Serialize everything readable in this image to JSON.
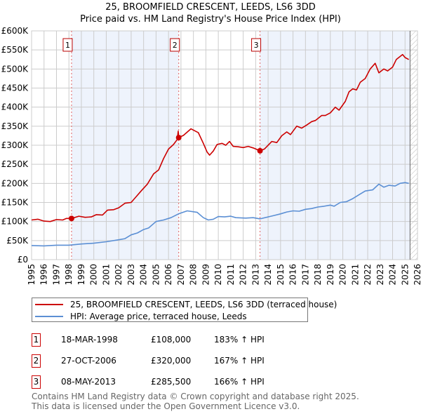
{
  "title": "25, BROOMFIELD CRESCENT, LEEDS, LS6 3DD",
  "subtitle": "Price paid vs. HM Land Registry's House Price Index (HPI)",
  "colors": {
    "price": "#cc0000",
    "hpi": "#5b8fd4",
    "shade": "#eef3fc",
    "grid": "#cccccc"
  },
  "chart_data": {
    "type": "line",
    "title": "25, BROOMFIELD CRESCENT, LEEDS, LS6 3DD",
    "xlim": [
      1995,
      2026
    ],
    "ylim": [
      0,
      600000
    ],
    "grid": true,
    "x_ticks": [
      "1995",
      "1996",
      "1997",
      "1998",
      "1999",
      "2000",
      "2001",
      "2002",
      "2003",
      "2004",
      "2005",
      "2006",
      "2007",
      "2008",
      "2009",
      "2010",
      "2011",
      "2012",
      "2013",
      "2014",
      "2015",
      "2016",
      "2017",
      "2018",
      "2019",
      "2020",
      "2021",
      "2022",
      "2023",
      "2024",
      "2025",
      "2026"
    ],
    "y_ticks": [
      {
        "v": 0,
        "label": "£0"
      },
      {
        "v": 50000,
        "label": "£50K"
      },
      {
        "v": 100000,
        "label": "£100K"
      },
      {
        "v": 150000,
        "label": "£150K"
      },
      {
        "v": 200000,
        "label": "£200K"
      },
      {
        "v": 250000,
        "label": "£250K"
      },
      {
        "v": 300000,
        "label": "£300K"
      },
      {
        "v": 350000,
        "label": "£350K"
      },
      {
        "v": 400000,
        "label": "£400K"
      },
      {
        "v": 450000,
        "label": "£450K"
      },
      {
        "v": 500000,
        "label": "£500K"
      },
      {
        "v": 550000,
        "label": "£550K"
      },
      {
        "v": 600000,
        "label": "£600K"
      }
    ],
    "data_end": 2025.4,
    "series": [
      {
        "name": "25, BROOMFIELD CRESCENT, LEEDS, LS6 3DD (terraced house)",
        "color": "#cc0000",
        "points": [
          [
            1995,
            104000
          ],
          [
            1995.5,
            106000
          ],
          [
            1996,
            101000
          ],
          [
            1996.5,
            100000
          ],
          [
            1997,
            105000
          ],
          [
            1997.5,
            104000
          ],
          [
            1997.8,
            108000
          ],
          [
            1998.21,
            108000
          ],
          [
            1998.8,
            114000
          ],
          [
            1999.3,
            111000
          ],
          [
            1999.8,
            112000
          ],
          [
            2000.2,
            118000
          ],
          [
            2000.7,
            117000
          ],
          [
            2001.1,
            130000
          ],
          [
            2001.6,
            131000
          ],
          [
            2002,
            136000
          ],
          [
            2002.5,
            148000
          ],
          [
            2003,
            150000
          ],
          [
            2003.4,
            165000
          ],
          [
            2003.8,
            180000
          ],
          [
            2004.3,
            198000
          ],
          [
            2004.8,
            225000
          ],
          [
            2005.2,
            235000
          ],
          [
            2005.6,
            265000
          ],
          [
            2006,
            290000
          ],
          [
            2006.4,
            302000
          ],
          [
            2006.7,
            315000
          ],
          [
            2006.78,
            337000
          ],
          [
            2006.82,
            320000
          ],
          [
            2007.2,
            326000
          ],
          [
            2007.8,
            343000
          ],
          [
            2008.4,
            333000
          ],
          [
            2008.8,
            305000
          ],
          [
            2009.1,
            282000
          ],
          [
            2009.3,
            274000
          ],
          [
            2009.6,
            285000
          ],
          [
            2009.9,
            302000
          ],
          [
            2010.3,
            305000
          ],
          [
            2010.6,
            300000
          ],
          [
            2010.9,
            310000
          ],
          [
            2011.2,
            297000
          ],
          [
            2011.6,
            296000
          ],
          [
            2012,
            294000
          ],
          [
            2012.4,
            297000
          ],
          [
            2012.8,
            293000
          ],
          [
            2013.35,
            285500
          ],
          [
            2013.7,
            290000
          ],
          [
            2014.3,
            310000
          ],
          [
            2014.7,
            307000
          ],
          [
            2015.1,
            325000
          ],
          [
            2015.5,
            335000
          ],
          [
            2015.8,
            328000
          ],
          [
            2016.3,
            350000
          ],
          [
            2016.7,
            345000
          ],
          [
            2017.1,
            353000
          ],
          [
            2017.5,
            362000
          ],
          [
            2017.8,
            365000
          ],
          [
            2018.3,
            378000
          ],
          [
            2018.6,
            378000
          ],
          [
            2019,
            385000
          ],
          [
            2019.4,
            400000
          ],
          [
            2019.7,
            392000
          ],
          [
            2020.2,
            415000
          ],
          [
            2020.5,
            440000
          ],
          [
            2020.8,
            448000
          ],
          [
            2021.1,
            445000
          ],
          [
            2021.4,
            465000
          ],
          [
            2021.8,
            475000
          ],
          [
            2022.2,
            500000
          ],
          [
            2022.6,
            515000
          ],
          [
            2022.9,
            490000
          ],
          [
            2023.3,
            500000
          ],
          [
            2023.6,
            495000
          ],
          [
            2024,
            505000
          ],
          [
            2024.3,
            525000
          ],
          [
            2024.8,
            538000
          ],
          [
            2025,
            530000
          ],
          [
            2025.3,
            525000
          ]
        ]
      },
      {
        "name": "HPI: Average price, terraced house, Leeds",
        "color": "#5b8fd4",
        "points": [
          [
            1995,
            37000
          ],
          [
            1996,
            36000
          ],
          [
            1997,
            38000
          ],
          [
            1998,
            38000
          ],
          [
            1999,
            41000
          ],
          [
            2000,
            43000
          ],
          [
            2001,
            47000
          ],
          [
            2002,
            52000
          ],
          [
            2002.5,
            55000
          ],
          [
            2003,
            65000
          ],
          [
            2003.5,
            70000
          ],
          [
            2004,
            79000
          ],
          [
            2004.4,
            83000
          ],
          [
            2005,
            100000
          ],
          [
            2005.6,
            104000
          ],
          [
            2006.2,
            110000
          ],
          [
            2006.8,
            120000
          ],
          [
            2007.5,
            128000
          ],
          [
            2008.3,
            124000
          ],
          [
            2008.8,
            110000
          ],
          [
            2009.2,
            104000
          ],
          [
            2009.6,
            106000
          ],
          [
            2010,
            113000
          ],
          [
            2010.5,
            112000
          ],
          [
            2011,
            114000
          ],
          [
            2011.4,
            110000
          ],
          [
            2012.2,
            109000
          ],
          [
            2012.8,
            110000
          ],
          [
            2013.35,
            107000
          ],
          [
            2014,
            112000
          ],
          [
            2014.5,
            116000
          ],
          [
            2015,
            120000
          ],
          [
            2015.5,
            125000
          ],
          [
            2016,
            128000
          ],
          [
            2016.5,
            127000
          ],
          [
            2017,
            132000
          ],
          [
            2017.5,
            134000
          ],
          [
            2018,
            138000
          ],
          [
            2018.5,
            140000
          ],
          [
            2019,
            143000
          ],
          [
            2019.3,
            140000
          ],
          [
            2019.8,
            150000
          ],
          [
            2020.3,
            152000
          ],
          [
            2020.8,
            160000
          ],
          [
            2021.3,
            170000
          ],
          [
            2021.8,
            180000
          ],
          [
            2022.4,
            183000
          ],
          [
            2022.9,
            198000
          ],
          [
            2023.3,
            190000
          ],
          [
            2023.7,
            195000
          ],
          [
            2024.2,
            193000
          ],
          [
            2024.6,
            200000
          ],
          [
            2025,
            202000
          ],
          [
            2025.3,
            200000
          ]
        ]
      }
    ],
    "sales": [
      {
        "n": "1",
        "year": 1998.21,
        "value": 108000
      },
      {
        "n": "2",
        "year": 2006.82,
        "value": 320000
      },
      {
        "n": "3",
        "year": 2013.35,
        "value": 285500
      }
    ]
  },
  "legend": {
    "price_label": "25, BROOMFIELD CRESCENT, LEEDS, LS6 3DD (terraced house)",
    "hpi_label": "HPI: Average price, terraced house, Leeds"
  },
  "transactions": [
    {
      "n": "1",
      "date": "18-MAR-1998",
      "price": "£108,000",
      "hpi": "183% ↑ HPI"
    },
    {
      "n": "2",
      "date": "27-OCT-2006",
      "price": "£320,000",
      "hpi": "167% ↑ HPI"
    },
    {
      "n": "3",
      "date": "08-MAY-2013",
      "price": "£285,500",
      "hpi": "166% ↑ HPI"
    }
  ],
  "footer": {
    "line1": "Contains HM Land Registry data © Crown copyright and database right 2025.",
    "line2": "This data is licensed under the Open Government Licence v3.0."
  }
}
